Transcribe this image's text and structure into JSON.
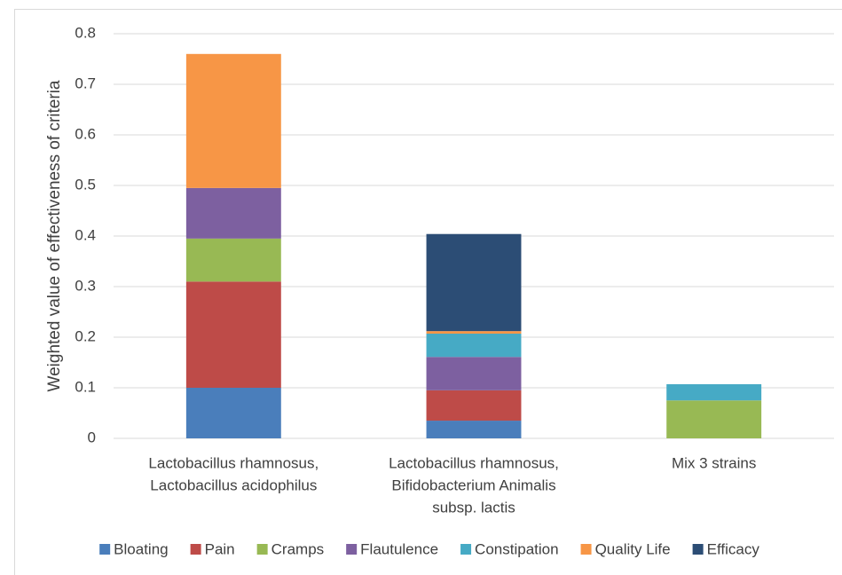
{
  "chart_data": {
    "type": "stacked_bar",
    "y_label": "Weighted value of effectiveness of criteria",
    "categories": [
      [
        "Lactobacillus rhamnosus,",
        "Lactobacillus acidophilus"
      ],
      [
        "Lactobacillus rhamnosus,",
        "Bifidobacterium Animalis",
        "subsp. lactis"
      ],
      [
        "Mix 3 strains"
      ]
    ],
    "series": [
      {
        "name": "Bloating",
        "color": "#4a7ebb",
        "values": [
          0.1,
          0.035,
          0
        ]
      },
      {
        "name": "Pain",
        "color": "#be4b48",
        "values": [
          0.21,
          0.06,
          0
        ]
      },
      {
        "name": "Cramps",
        "color": "#98b954",
        "values": [
          0.085,
          0,
          0.075
        ]
      },
      {
        "name": "Flautulence",
        "color": "#7d60a0",
        "values": [
          0.1,
          0.066,
          0
        ]
      },
      {
        "name": "Constipation",
        "color": "#46aac5",
        "values": [
          0,
          0.046,
          0.032
        ]
      },
      {
        "name": "Quality Life",
        "color": "#f79646",
        "values": [
          0.265,
          0.005,
          0
        ]
      },
      {
        "name": "Efficacy",
        "color": "#2c4d75",
        "values": [
          0,
          0.192,
          0
        ]
      }
    ],
    "ylim": [
      0,
      0.8
    ],
    "yticks": [
      0,
      0.1,
      0.2,
      0.3,
      0.4,
      0.5,
      0.6,
      0.7,
      0.8
    ],
    "grid": true,
    "legend": "bottom"
  }
}
